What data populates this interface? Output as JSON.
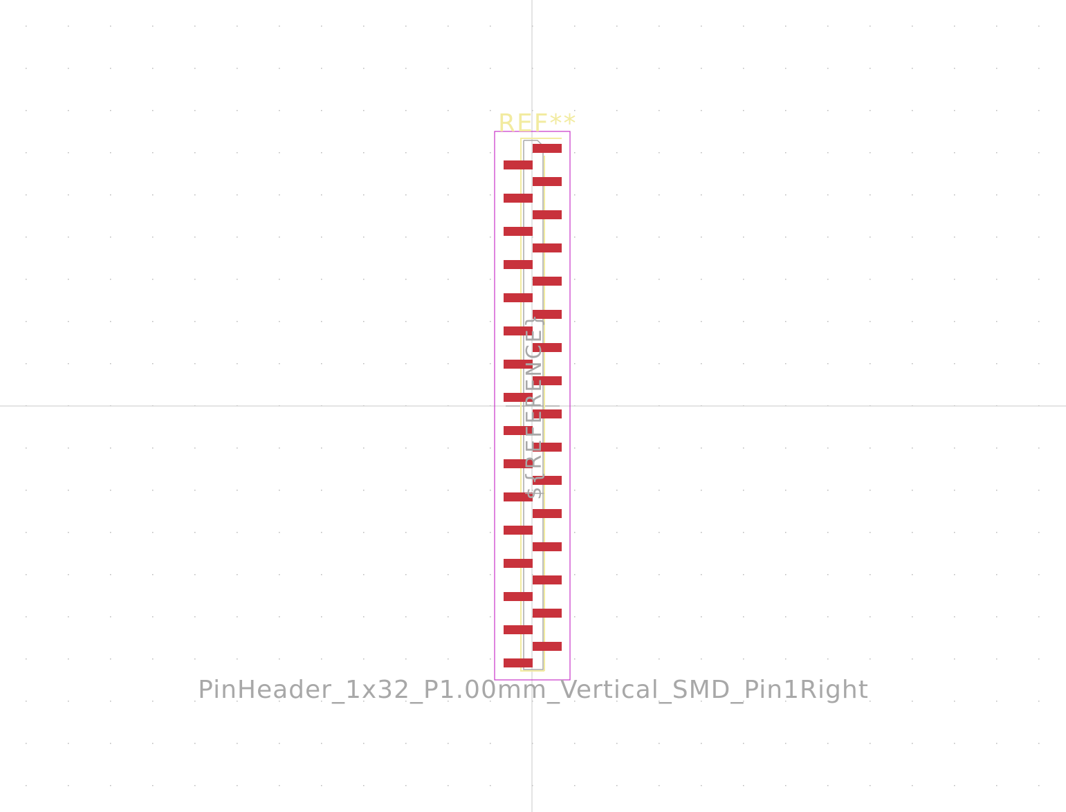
{
  "footprint": {
    "reference": "REF**",
    "value": "PinHeader_1x32_P1.00mm_Vertical_SMD_Pin1Right",
    "fab_reference": "${REFERENCE}",
    "pin_count": 32,
    "pitch_mm": 1.0,
    "pin1_side": "right"
  },
  "colors": {
    "background": "#ffffff",
    "grid_dot": "#b8b8b8",
    "axis": "#c8c8c8",
    "pad": "#c8323c",
    "silkscreen": "#f2eba0",
    "courtyard": "#c832c8",
    "fab": "#a8a8a8",
    "value_text": "#a8a8a8",
    "reference_text": "#f2eba0"
  }
}
